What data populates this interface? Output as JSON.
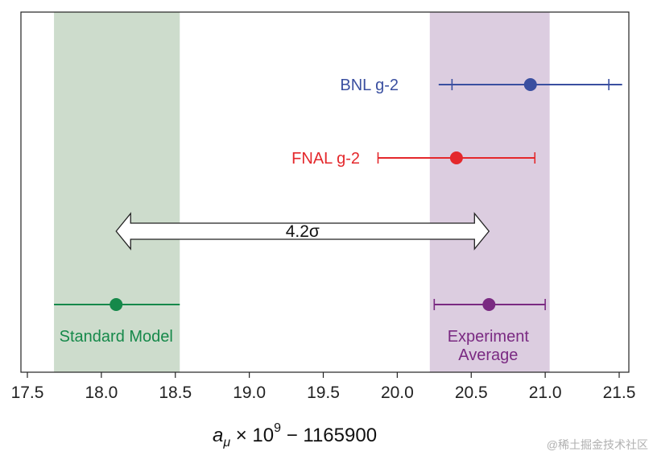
{
  "chart_data": {
    "type": "errorbar",
    "xlabel": {
      "prefix": "a",
      "subscript": "μ",
      "times": " × 10",
      "exponent": "9",
      "suffix": " − 1165900"
    },
    "xlim": [
      17.5,
      21.6
    ],
    "xticks": [
      17.5,
      18.0,
      18.5,
      19.0,
      19.5,
      20.0,
      20.5,
      21.0,
      21.5
    ],
    "xtick_labels": [
      "17.5",
      "18.0",
      "18.5",
      "19.0",
      "19.5",
      "20.0",
      "20.5",
      "21.0",
      "21.5"
    ],
    "bands": [
      {
        "name": "Standard Model band",
        "range": [
          17.68,
          18.53
        ],
        "color": "#cddccc"
      },
      {
        "name": "Experiment Average band",
        "range": [
          20.22,
          21.03
        ],
        "color": "#dccde0"
      }
    ],
    "points": [
      {
        "name": "BNL g-2",
        "label": "BNL g-2",
        "value": 20.9,
        "inner": [
          20.37,
          21.43
        ],
        "outer": [
          20.28,
          21.52
        ],
        "color": "#3a4fa0"
      },
      {
        "name": "FNAL g-2",
        "label": "FNAL g-2",
        "value": 20.4,
        "inner": [
          19.87,
          20.93
        ],
        "outer": [
          19.87,
          20.93
        ],
        "color": "#e4282c"
      },
      {
        "name": "Standard Model",
        "label": "Standard Model",
        "value": 18.1,
        "inner": [
          17.68,
          18.53
        ],
        "outer": [
          17.68,
          18.53
        ],
        "color": "#16894a"
      },
      {
        "name": "Experiment Average",
        "label": [
          "Experiment",
          "Average"
        ],
        "value": 20.62,
        "inner": [
          20.25,
          21.0
        ],
        "outer": [
          20.25,
          21.0
        ],
        "color": "#7a2a82"
      }
    ],
    "annotation": {
      "text": "4.2σ",
      "from": 18.1,
      "to": 20.62
    }
  },
  "watermark": "@稀土掘金技术社区"
}
